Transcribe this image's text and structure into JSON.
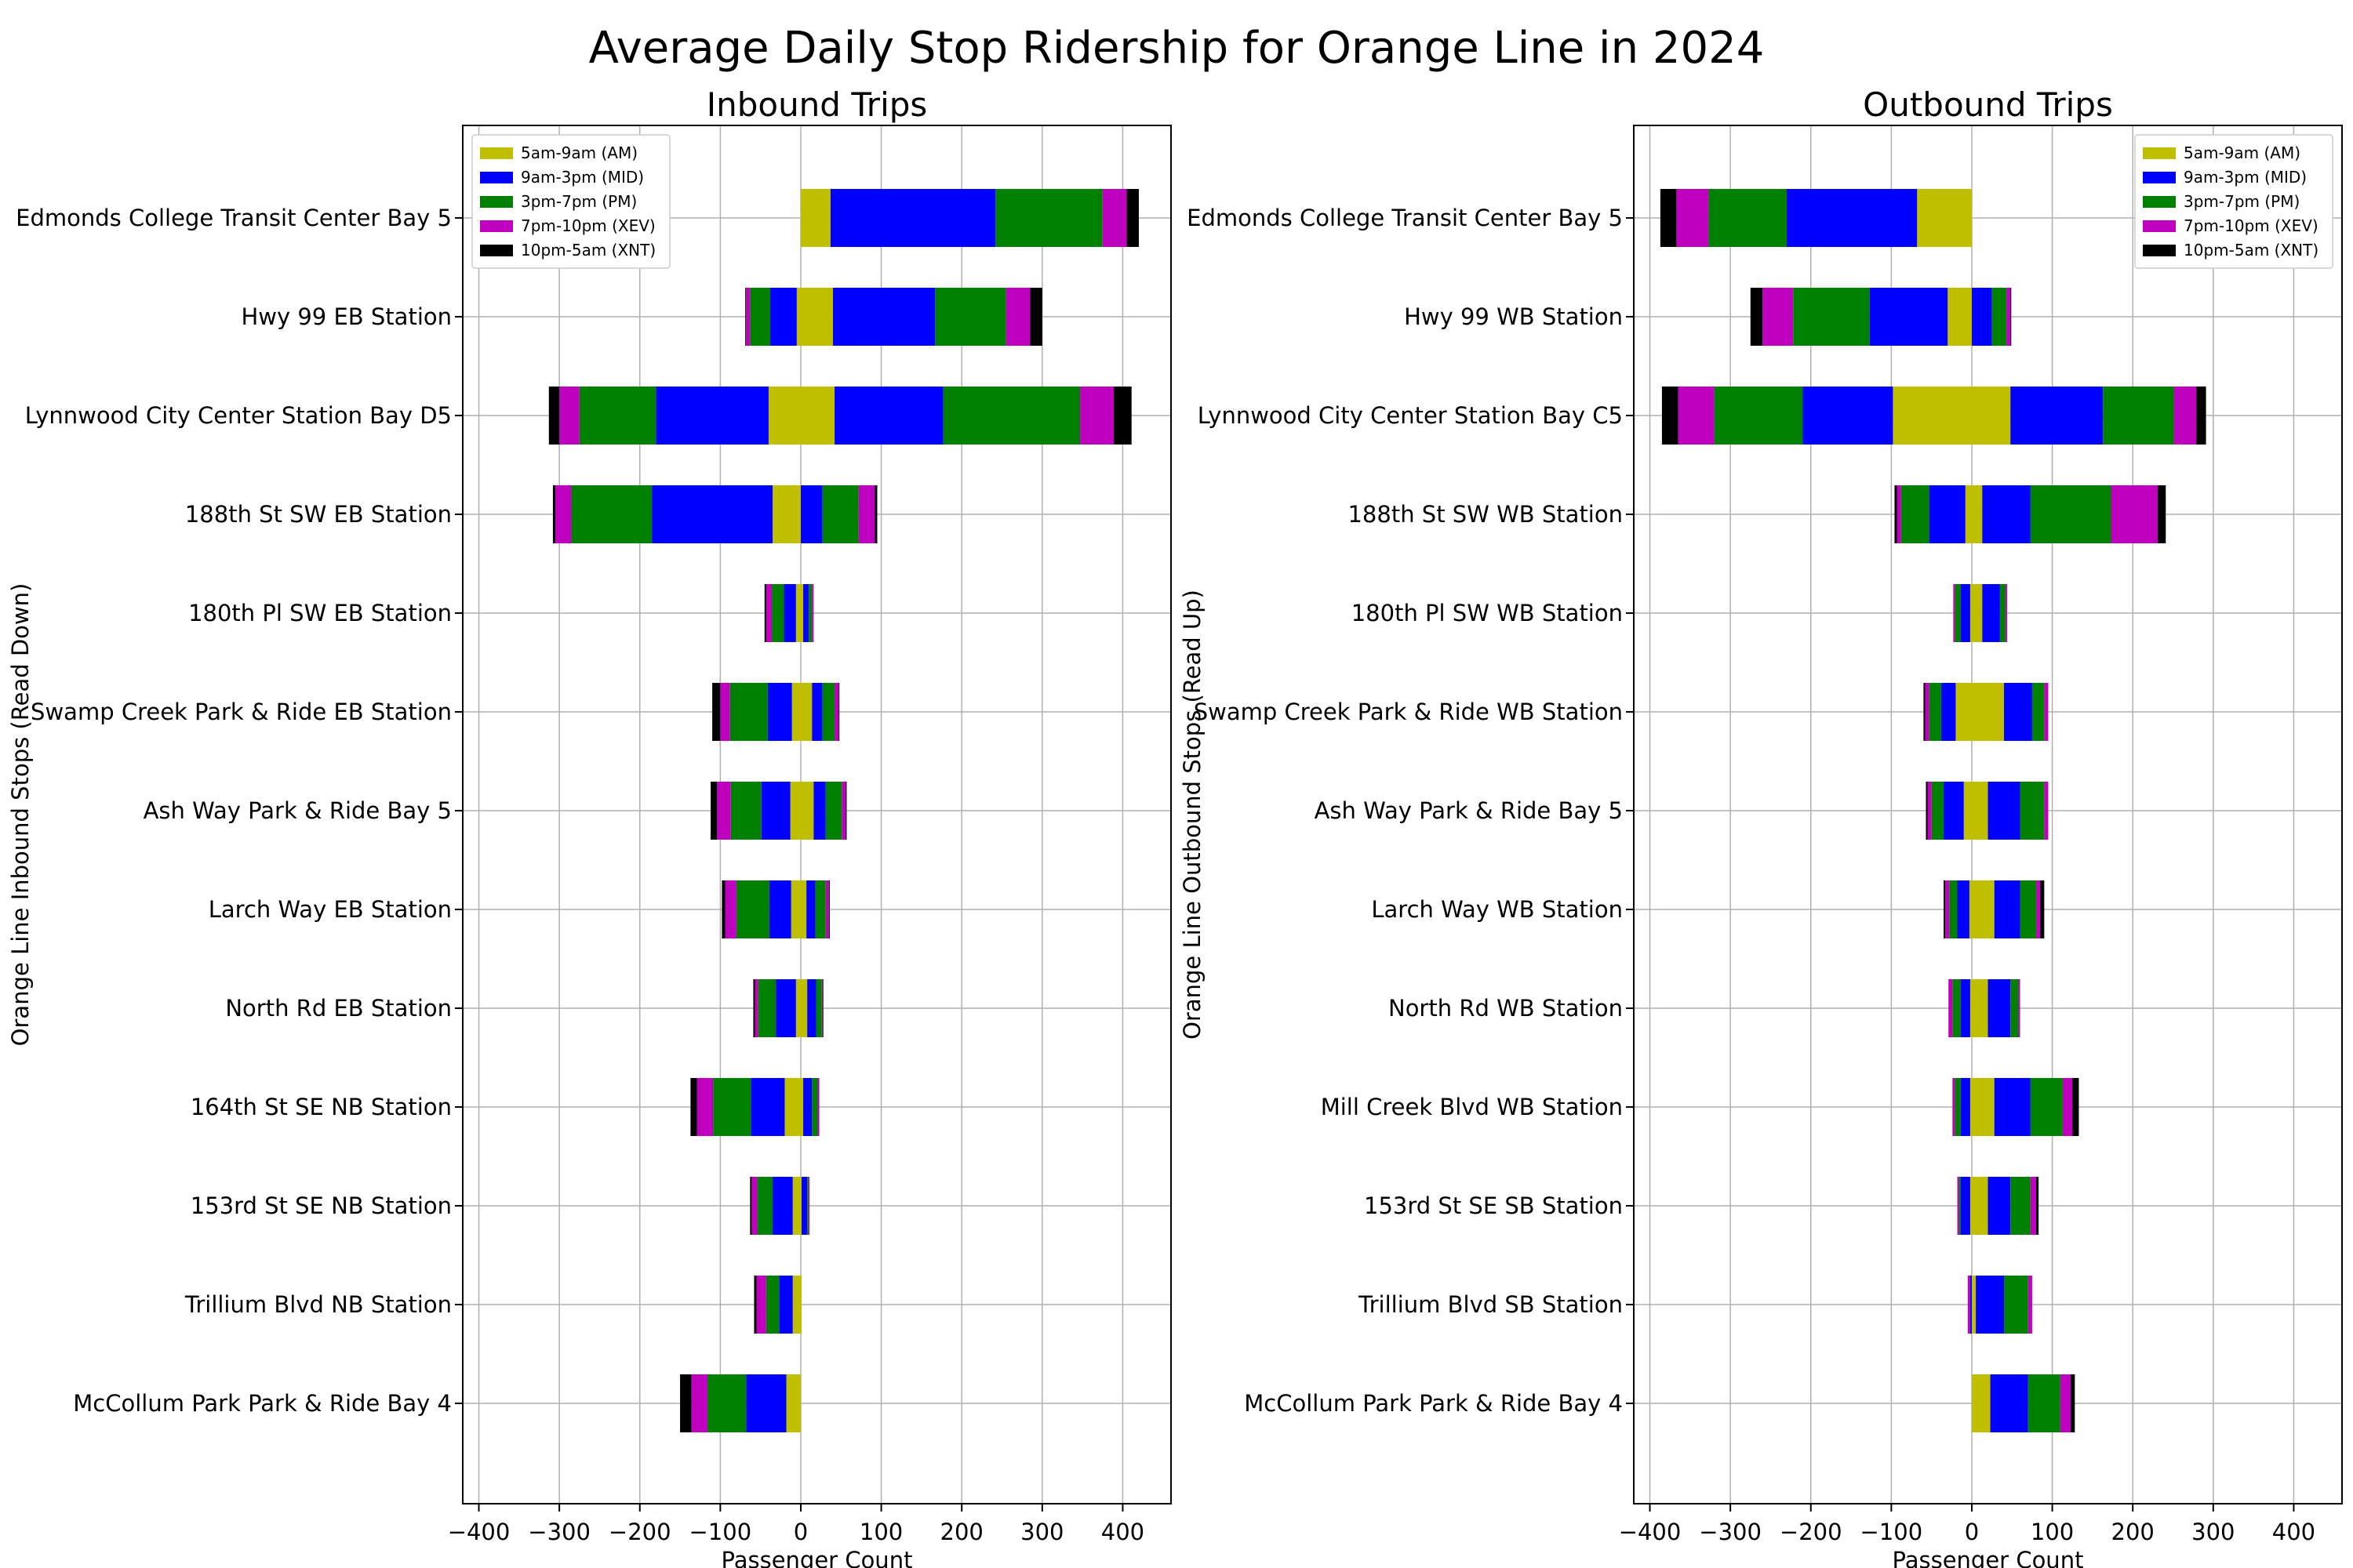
{
  "chart_data": {
    "type": "bar",
    "orientation": "horizontal",
    "stacked": true,
    "diverging": true,
    "title": "Average Daily Stop Ridership for Orange Line in 2024",
    "xlim": [
      -420,
      460
    ],
    "xticks": [
      -400,
      -300,
      -200,
      -100,
      0,
      100,
      200,
      300,
      400
    ],
    "grid": true,
    "legend_labels": [
      "5am-9am (AM)",
      "9am-3pm (MID)",
      "3pm-7pm (PM)",
      "7pm-10pm (XEV)",
      "10pm-5am (XNT)"
    ],
    "series_colors": [
      "#bfbf00",
      "#0000ff",
      "#008000",
      "#bf00bf",
      "#000000"
    ],
    "panels": [
      {
        "title": "Inbound Trips",
        "xlabel": "Passenger Count",
        "ylabel": "Orange Line Inbound Stops (Read Down)",
        "legend_position": "upper-left",
        "categories": [
          "Edmonds College Transit Center Bay 5",
          "Hwy 99 EB Station",
          "Lynnwood City Center Station Bay D5",
          "188th St SW EB Station",
          "180th Pl SW EB Station",
          "Swamp Creek Park & Ride EB Station",
          "Ash Way Park & Ride Bay 5",
          "Larch Way EB Station",
          "North Rd EB Station",
          "164th St SE NB Station",
          "153rd St SE NB Station",
          "Trillium Blvd NB Station",
          "McCollum Park Park & Ride Bay 4"
        ],
        "boardings_note": "positive side",
        "positive": [
          [
            37,
            205,
            133,
            30,
            15
          ],
          [
            40,
            127,
            88,
            30,
            15
          ],
          [
            42,
            135,
            170,
            42,
            22
          ],
          [
            0,
            27,
            45,
            20,
            3
          ],
          [
            3,
            7,
            4,
            2,
            0
          ],
          [
            14,
            13,
            15,
            5,
            1
          ],
          [
            16,
            15,
            20,
            5,
            1
          ],
          [
            7,
            11,
            13,
            4,
            1
          ],
          [
            8,
            11,
            7,
            1,
            1
          ],
          [
            3,
            11,
            7,
            2,
            0
          ],
          [
            1,
            7,
            2,
            1,
            0
          ],
          [
            1,
            0,
            0,
            0,
            0
          ],
          [
            0,
            0,
            0,
            0,
            0
          ]
        ],
        "negative": [
          [
            0,
            0,
            0,
            0,
            0
          ],
          [
            5,
            33,
            25,
            5,
            1
          ],
          [
            40,
            140,
            95,
            25,
            13
          ],
          [
            35,
            150,
            100,
            20,
            3
          ],
          [
            6,
            15,
            15,
            7,
            2
          ],
          [
            11,
            30,
            47,
            12,
            10
          ],
          [
            13,
            36,
            38,
            17,
            8
          ],
          [
            12,
            27,
            41,
            14,
            4
          ],
          [
            6,
            25,
            22,
            4,
            2
          ],
          [
            20,
            42,
            47,
            20,
            8
          ],
          [
            10,
            25,
            19,
            7,
            2
          ],
          [
            10,
            17,
            16,
            12,
            3
          ],
          [
            18,
            50,
            48,
            20,
            14
          ]
        ]
      },
      {
        "title": "Outbound Trips",
        "xlabel": "Passenger Count",
        "ylabel": "Orange Line Outbound Stops (Read Up)",
        "legend_position": "upper-right",
        "categories": [
          "Edmonds College Transit Center Bay 5",
          "Hwy 99 WB Station",
          "Lynnwood City Center Station Bay C5",
          "188th St SW WB Station",
          "180th Pl SW WB Station",
          "Swamp Creek Park & Ride WB Station",
          "Ash Way Park & Ride Bay 5",
          "Larch Way WB Station",
          "North Rd WB Station",
          "Mill Creek Blvd WB Station",
          "153rd St SE SB Station",
          "Trillium Blvd SB Station",
          "McCollum Park Park & Ride Bay 4"
        ],
        "positive": [
          [
            0,
            0,
            0,
            0,
            0
          ],
          [
            0,
            25,
            18,
            5,
            1
          ],
          [
            48,
            115,
            88,
            28,
            12
          ],
          [
            13,
            60,
            100,
            58,
            10
          ],
          [
            13,
            22,
            7,
            2,
            0
          ],
          [
            40,
            35,
            15,
            5,
            0
          ],
          [
            20,
            40,
            30,
            5,
            0
          ],
          [
            28,
            32,
            20,
            5,
            5
          ],
          [
            20,
            28,
            10,
            2,
            0
          ],
          [
            28,
            45,
            40,
            12,
            8
          ],
          [
            20,
            28,
            25,
            7,
            3
          ],
          [
            5,
            35,
            30,
            5,
            0
          ],
          [
            23,
            47,
            40,
            13,
            5
          ]
        ],
        "negative": [
          [
            68,
            162,
            97,
            40,
            20
          ],
          [
            30,
            97,
            95,
            38,
            15
          ],
          [
            98,
            112,
            110,
            45,
            20
          ],
          [
            8,
            45,
            35,
            5,
            3
          ],
          [
            2,
            12,
            7,
            2,
            0
          ],
          [
            20,
            18,
            15,
            5,
            2
          ],
          [
            10,
            25,
            15,
            5,
            2
          ],
          [
            3,
            15,
            10,
            5,
            2
          ],
          [
            2,
            12,
            10,
            5,
            0
          ],
          [
            2,
            12,
            7,
            3,
            0
          ],
          [
            2,
            12,
            2,
            2,
            0
          ],
          [
            0,
            2,
            0,
            3,
            0
          ],
          [
            0,
            0,
            0,
            0,
            0
          ]
        ]
      }
    ]
  }
}
